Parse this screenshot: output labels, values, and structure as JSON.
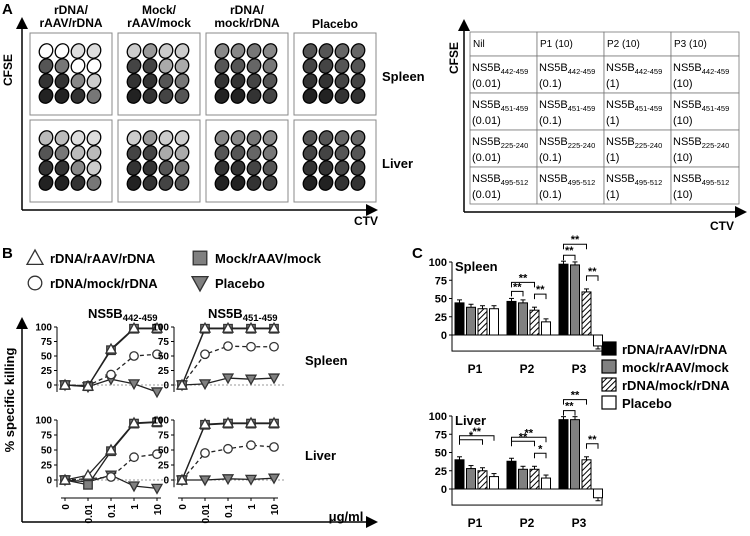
{
  "panel_labels": {
    "a": "A",
    "b": "B",
    "c": "C"
  },
  "panel_a": {
    "columns": [
      "rDNA/\nrAAV/rDNA",
      "Mock/\nrAAV/mock",
      "rDNA/\nmock/rDNA",
      "Placebo"
    ],
    "rows": [
      "Spleen",
      "Liver"
    ],
    "y_axis": "CFSE",
    "x_axis": "CTV",
    "legend_table": {
      "y_axis": "CFSE",
      "x_axis": "CTV",
      "rows": [
        [
          {
            "main": "Nil",
            "sub": "",
            "conc": ""
          },
          {
            "main": "P1 (10)",
            "sub": "",
            "conc": ""
          },
          {
            "main": "P2 (10)",
            "sub": "",
            "conc": ""
          },
          {
            "main": "P3 (10)",
            "sub": "",
            "conc": ""
          }
        ],
        [
          {
            "main": "NS5B",
            "sub": "442-459",
            "conc": "(0.01)"
          },
          {
            "main": "NS5B",
            "sub": "442-459",
            "conc": "(0.1)"
          },
          {
            "main": "NS5B",
            "sub": "442-459",
            "conc": "(1)"
          },
          {
            "main": "NS5B",
            "sub": "442-459",
            "conc": "(10)"
          }
        ],
        [
          {
            "main": "NS5B",
            "sub": "451-459",
            "conc": "(0.01)"
          },
          {
            "main": "NS5B",
            "sub": "451-459",
            "conc": "(0.1)"
          },
          {
            "main": "NS5B",
            "sub": "451-459",
            "conc": "(1)"
          },
          {
            "main": "NS5B",
            "sub": "451-459",
            "conc": "(10)"
          }
        ],
        [
          {
            "main": "NS5B",
            "sub": "225-240",
            "conc": "(0.01)"
          },
          {
            "main": "NS5B",
            "sub": "225-240",
            "conc": "(0.1)"
          },
          {
            "main": "NS5B",
            "sub": "225-240",
            "conc": "(1)"
          },
          {
            "main": "NS5B",
            "sub": "225-240",
            "conc": "(10)"
          }
        ],
        [
          {
            "main": "NS5B",
            "sub": "495-512",
            "conc": "(0.01)"
          },
          {
            "main": "NS5B",
            "sub": "495-512",
            "conc": "(0.1)"
          },
          {
            "main": "NS5B",
            "sub": "495-512",
            "conc": "(1)"
          },
          {
            "main": "NS5B",
            "sub": "495-512",
            "conc": "(10)"
          }
        ]
      ]
    }
  },
  "panel_b": {
    "legend": [
      {
        "label": "rDNA/rAAV/rDNA",
        "marker": "triangle-up",
        "color": "#ffffff"
      },
      {
        "label": "Mock/rAAV/mock",
        "marker": "square",
        "color": "#808080"
      },
      {
        "label": "rDNA/mock/rDNA",
        "marker": "circle",
        "color": "#ffffff"
      },
      {
        "label": "Placebo",
        "marker": "triangle-down",
        "color": "#808080"
      }
    ],
    "peptides": [
      {
        "main": "NS5B",
        "sub": "442-459"
      },
      {
        "main": "NS5B",
        "sub": "451-459"
      }
    ],
    "ylabel": "% specific killing",
    "xlabel": "μg/ml",
    "organs": [
      "Spleen",
      "Liver"
    ],
    "x_ticks": [
      "0",
      "0.01",
      "0.1",
      "1",
      "10"
    ],
    "y_ticks": [
      "0",
      "25",
      "50",
      "75",
      "100"
    ]
  },
  "panel_c": {
    "legend": [
      {
        "label": "rDNA/rAAV/rDNA",
        "color": "#000000",
        "pattern": "solid"
      },
      {
        "label": "mock/rAAV/mock",
        "color": "#808080",
        "pattern": "solid"
      },
      {
        "label": "rDNA/mock/rDNA",
        "color": "#ffffff",
        "pattern": "hatch"
      },
      {
        "label": "Placebo",
        "color": "#ffffff",
        "pattern": "none"
      }
    ],
    "y_ticks": [
      "0",
      "25",
      "50",
      "75",
      "100"
    ],
    "stars": [
      "**",
      "*"
    ]
  },
  "chart_data": [
    {
      "type": "line",
      "panel": "B",
      "organ": "Spleen",
      "peptide": "NS5B442-459",
      "xlabel": "μg/ml",
      "ylabel": "% specific killing",
      "ylim": [
        -10,
        100
      ],
      "x": [
        "0",
        "0.01",
        "0.1",
        "1",
        "10"
      ],
      "series": [
        {
          "name": "rDNA/rAAV/rDNA",
          "values": [
            0,
            -2,
            62,
            98,
            98
          ]
        },
        {
          "name": "Mock/rAAV/mock",
          "values": [
            0,
            -2,
            60,
            97,
            97
          ]
        },
        {
          "name": "rDNA/mock/rDNA",
          "values": [
            0,
            -1,
            18,
            50,
            53
          ]
        },
        {
          "name": "Placebo",
          "values": [
            0,
            -3,
            10,
            2,
            -12
          ]
        }
      ]
    },
    {
      "type": "line",
      "panel": "B",
      "organ": "Spleen",
      "peptide": "NS5B451-459",
      "xlabel": "μg/ml",
      "ylabel": "% specific killing",
      "ylim": [
        -10,
        100
      ],
      "x": [
        "0",
        "0.01",
        "0.1",
        "1",
        "10"
      ],
      "series": [
        {
          "name": "rDNA/rAAV/rDNA",
          "values": [
            0,
            98,
            98,
            98,
            98
          ]
        },
        {
          "name": "Mock/rAAV/mock",
          "values": [
            0,
            97,
            97,
            97,
            97
          ]
        },
        {
          "name": "rDNA/mock/rDNA",
          "values": [
            0,
            53,
            67,
            66,
            66
          ]
        },
        {
          "name": "Placebo",
          "values": [
            0,
            2,
            12,
            10,
            12
          ]
        }
      ]
    },
    {
      "type": "line",
      "panel": "B",
      "organ": "Liver",
      "peptide": "NS5B442-459",
      "xlabel": "μg/ml",
      "ylabel": "% specific killing",
      "ylim": [
        -10,
        100
      ],
      "x": [
        "0",
        "0.01",
        "0.1",
        "1",
        "10"
      ],
      "series": [
        {
          "name": "rDNA/rAAV/rDNA",
          "values": [
            0,
            8,
            50,
            95,
            97
          ]
        },
        {
          "name": "Mock/rAAV/mock",
          "values": [
            0,
            -8,
            48,
            94,
            96
          ]
        },
        {
          "name": "rDNA/mock/rDNA",
          "values": [
            0,
            2,
            5,
            38,
            43
          ]
        },
        {
          "name": "Placebo",
          "values": [
            0,
            -3,
            8,
            -10,
            -14
          ]
        }
      ]
    },
    {
      "type": "line",
      "panel": "B",
      "organ": "Liver",
      "peptide": "NS5B451-459",
      "xlabel": "μg/ml",
      "ylabel": "% specific killing",
      "ylim": [
        -10,
        100
      ],
      "x": [
        "0",
        "0.01",
        "0.1",
        "1",
        "10"
      ],
      "series": [
        {
          "name": "rDNA/rAAV/rDNA",
          "values": [
            0,
            93,
            95,
            95,
            95
          ]
        },
        {
          "name": "Mock/rAAV/mock",
          "values": [
            0,
            92,
            94,
            94,
            94
          ]
        },
        {
          "name": "rDNA/mock/rDNA",
          "values": [
            0,
            45,
            52,
            58,
            55
          ]
        },
        {
          "name": "Placebo",
          "values": [
            0,
            0,
            2,
            1,
            3
          ]
        }
      ]
    },
    {
      "type": "bar",
      "panel": "C",
      "title": "Spleen",
      "categories": [
        "P1",
        "P2",
        "P3"
      ],
      "ylim": [
        -25,
        100
      ],
      "series": [
        {
          "name": "rDNA/rAAV/rDNA",
          "values": [
            44,
            46,
            97
          ]
        },
        {
          "name": "mock/rAAV/mock",
          "values": [
            38,
            44,
            96
          ]
        },
        {
          "name": "rDNA/mock/rDNA",
          "values": [
            36,
            34,
            59
          ]
        },
        {
          "name": "Placebo",
          "values": [
            36,
            18,
            -15
          ]
        }
      ]
    },
    {
      "type": "bar",
      "panel": "C",
      "title": "Liver",
      "categories": [
        "P1",
        "P2",
        "P3"
      ],
      "ylim": [
        -25,
        100
      ],
      "series": [
        {
          "name": "rDNA/rAAV/rDNA",
          "values": [
            40,
            38,
            95
          ]
        },
        {
          "name": "mock/rAAV/mock",
          "values": [
            28,
            27,
            95
          ]
        },
        {
          "name": "rDNA/mock/rDNA",
          "values": [
            25,
            27,
            40
          ]
        },
        {
          "name": "Placebo",
          "values": [
            17,
            15,
            -12
          ]
        }
      ]
    }
  ]
}
